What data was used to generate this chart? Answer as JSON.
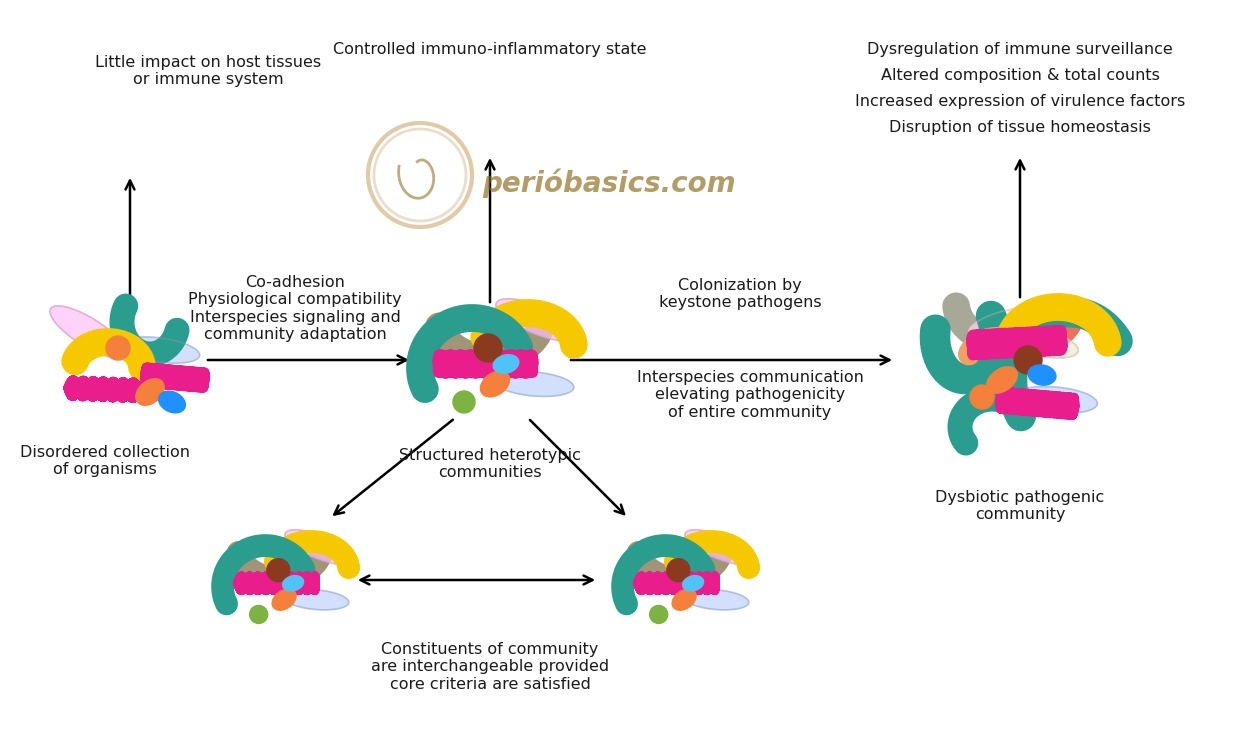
{
  "bg_color": "#ffffff",
  "text_color": "#1a1a1a",
  "figsize": [
    12.35,
    7.37
  ],
  "dpi": 100,
  "labels": {
    "top_left": "Little impact on host tissues\nor immune system",
    "top_center": "Controlled immuno-inflammatory state",
    "top_right_lines": [
      "Dysregulation of immune surveillance",
      "Altered composition & total counts",
      "Increased expression of virulence factors",
      "Disruption of tissue homeostasis"
    ],
    "left_bottom": "Disordered collection\nof organisms",
    "co_adhesion": "Co-adhesion\nPhysiological compatibility\nInterspecies signaling and\ncommunity adaptation",
    "colonization": "Colonization by\nkeystone pathogens",
    "interspecies": "Interspecies communication\nelevating pathogenicity\nof entire community",
    "structured": "Structured heterotypic\ncommunities",
    "constituents": "Constituents of community\nare interchangeable provided\ncore criteria are satisfied",
    "dysbiotic": "Dysbiotic pathogenic\ncommunity",
    "watermark": "perióbasics.com"
  },
  "colors": {
    "teal": "#2a9d8f",
    "magenta": "#e91e8c",
    "yellow": "#f5c800",
    "orange": "#f4803b",
    "purple_speckled": "#c9a0dc",
    "blue_gray_speckled": "#9bacc4",
    "brown_dark": "#8b4513",
    "green_light": "#7cb342",
    "gray_tan": "#9e9e7e",
    "blue": "#1e90ff",
    "salmon": "#e8735a",
    "logo_brown": "#8B6914",
    "tan_arc": "#a09575",
    "orange_light": "#f0a060",
    "teal_light": "#60c0b0",
    "gray_rod": "#a0a898"
  }
}
